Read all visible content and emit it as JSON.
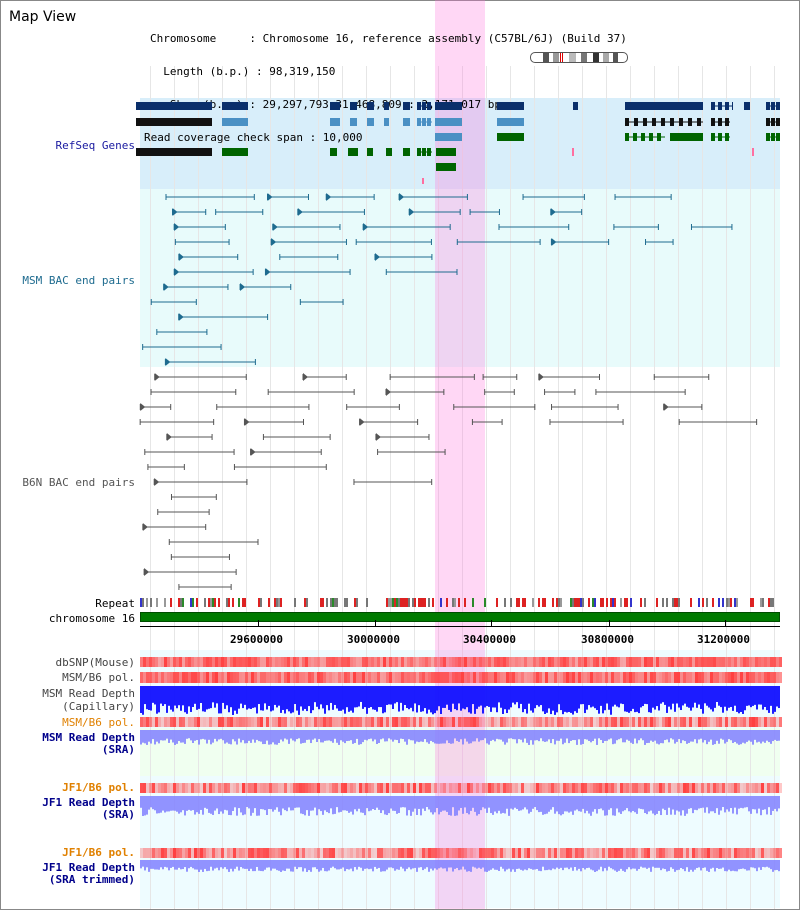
{
  "header": {
    "title": "Map View",
    "chromosome_row": "Chromosome     : Chromosome 16, reference assembly (C57BL/6J) (Build 37)",
    "length_row": "  Length (b.p.) : 98,319,150",
    "show_row": "   Show (b.p.) : 29,297,793-31,468,809 : 2,171,017 bp",
    "coverage_row": "Read coverage check span : 10,000"
  },
  "tracks": {
    "refseq": "RefSeq Genes",
    "msm_bac": "MSM BAC end pairs",
    "b6n_bac": "B6N BAC end pairs",
    "repeat": "Repeat",
    "chromosome": "chromosome 16",
    "dbsnp": "dbSNP(Mouse)",
    "msm_pol": "MSM/B6 pol.",
    "msm_depth_cap_1": "MSM Read Depth",
    "msm_depth_cap_2": "(Capillary)",
    "msm_pol_sra": "MSM/B6 pol.",
    "msm_depth_sra_1": "MSM Read Depth",
    "msm_depth_sra_2": "(SRA)",
    "jf1_pol": "JF1/B6 pol.",
    "jf1_depth_1": "JF1 Read Depth",
    "jf1_depth_2": "(SRA)",
    "jf1_pol_trim": "JF1/B6 pol.",
    "jf1_trim_1": "JF1 Read Depth",
    "jf1_trim_2": "(SRA trimmed)"
  },
  "axis": {
    "ticks": [
      "29600000",
      "30000000",
      "30400000",
      "30800000",
      "31200000"
    ]
  },
  "colors": {
    "refseq_blue": "#0a2f6b",
    "refseq_light": "#4a90c4",
    "refseq_green": "#006400",
    "msm_bac": "#1e6b8f",
    "b6n_bac": "#555555",
    "snp_red": "#ff4040",
    "depth_blue": "#1010ff",
    "depth_light": "#8080ff",
    "orange_label": "#e08000",
    "blue_label": "#00008b"
  }
}
